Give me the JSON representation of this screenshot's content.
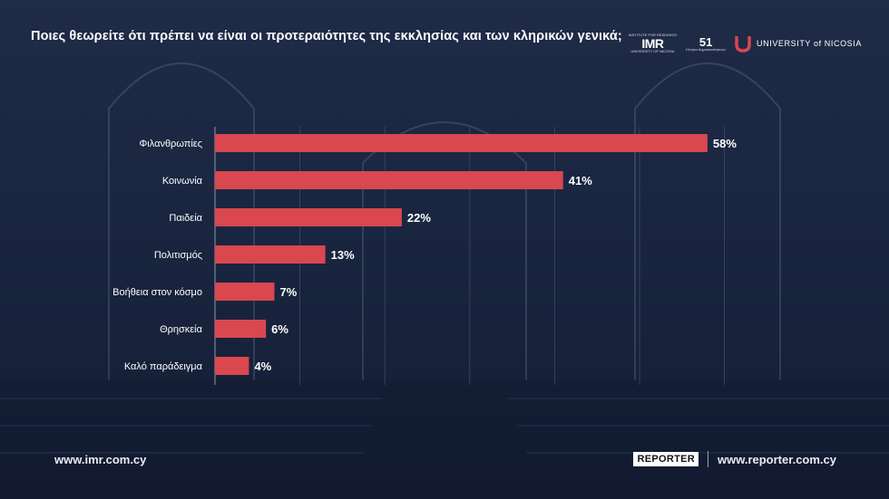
{
  "title": "Ποιες θεωρείτε ότι πρέπει να είναι οι προτεραιότητες της εκκλησίας και των κληρικών γενικά;",
  "logos": {
    "imr_small": "INSTITUTE FOR RESEARCH",
    "imr": "IMR",
    "imr_sub": "UNIVERSITY OF NICOSIA",
    "fifty_one": "51",
    "fifty_one_sub": "Κέντρο Δημοσκοπήσεων",
    "unic": "UNIVERSITY of NICOSIA"
  },
  "footer": {
    "left_url": "www.imr.com.cy",
    "reporter_badge": "REPORTER",
    "right_url": "www.reporter.com.cy"
  },
  "colors": {
    "bar": "#d9474f",
    "background": "#1c2743",
    "text": "#ffffff"
  },
  "chart_data": {
    "type": "bar",
    "orientation": "horizontal",
    "categories": [
      "Φιλανθρωπίες",
      "Κοινωνία",
      "Παιδεία",
      "Πολιτισμός",
      "Βοήθεια στον κόσμο",
      "Θρησκεία",
      "Καλό παράδειγμα"
    ],
    "values": [
      58,
      41,
      22,
      13,
      7,
      6,
      4
    ],
    "value_labels": [
      "58%",
      "41%",
      "22%",
      "13%",
      "7%",
      "6%",
      "4%"
    ],
    "unit": "%",
    "xlim": [
      0,
      60
    ],
    "grid": true,
    "legend": "none"
  }
}
